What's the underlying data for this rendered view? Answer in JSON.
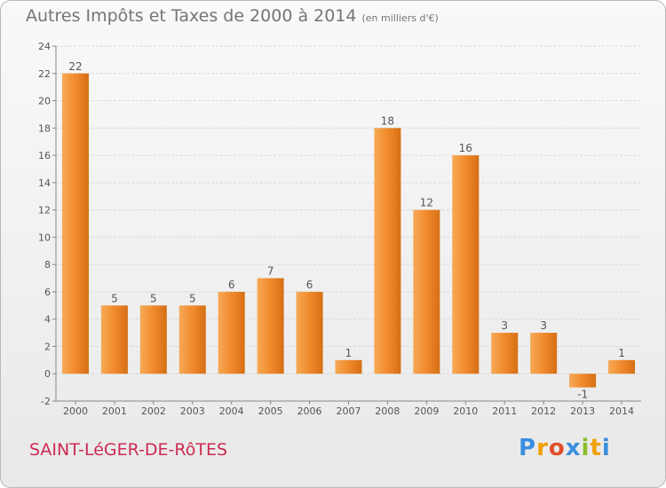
{
  "header": {
    "title": "Autres Impôts et Taxes de 2000 à 2014",
    "unit": "(en milliers d'€)"
  },
  "footer": {
    "commune": "SAINT-LéGER-DE-RôTES",
    "brand": "Proxiti",
    "brand_letter_colors": [
      "#3b8ede",
      "#f0a000",
      "#e04f2a",
      "#3b8ede",
      "#8cbd2a",
      "#f0a000",
      "#3b8ede"
    ]
  },
  "chart_data": {
    "type": "bar",
    "title": "Autres Impôts et Taxes de 2000 à 2014",
    "subtitle": "(en milliers d'€)",
    "xlabel": "",
    "ylabel": "",
    "categories": [
      "2000",
      "2001",
      "2002",
      "2003",
      "2004",
      "2005",
      "2006",
      "2007",
      "2008",
      "2009",
      "2010",
      "2011",
      "2012",
      "2013",
      "2014"
    ],
    "values": [
      22,
      5,
      5,
      5,
      6,
      7,
      6,
      1,
      18,
      12,
      16,
      3,
      3,
      -1,
      1
    ],
    "ylim": [
      -2,
      24
    ],
    "yticks": [
      -2,
      0,
      2,
      4,
      6,
      8,
      10,
      12,
      14,
      16,
      18,
      20,
      22,
      24
    ],
    "grid": true,
    "bar_color": "#f08a2c",
    "bar_color_light": "#f7a956",
    "bar_color_dark": "#d66f14"
  }
}
